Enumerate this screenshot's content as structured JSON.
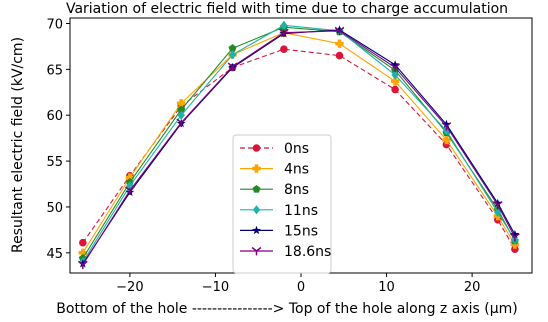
{
  "chart_data": {
    "type": "line",
    "title": "Variation of electric field with time due to charge accumulation",
    "xlabel": "Bottom of the hole ----------------> Top of the hole along z axis (μm)",
    "ylabel": "Resultant electric field (kV/cm)",
    "xlim": [
      -27,
      27
    ],
    "ylim": [
      42.8,
      70.6
    ],
    "xticks": [
      -20,
      -10,
      0,
      10,
      20
    ],
    "yticks": [
      45,
      50,
      55,
      60,
      65,
      70
    ],
    "grid": false,
    "legend_position": "lower-center",
    "x": [
      -25.5,
      -20,
      -14,
      -8,
      -2,
      4.5,
      11,
      17,
      23,
      25
    ],
    "series": [
      {
        "name": "0ns",
        "color": "#dc143c",
        "dash": "dashed",
        "marker": "circle",
        "values": [
          46.1,
          53.4,
          61.0,
          65.2,
          67.2,
          66.5,
          62.8,
          56.8,
          48.6,
          45.4
        ]
      },
      {
        "name": "4ns",
        "color": "#ffa500",
        "dash": "solid",
        "marker": "plus",
        "values": [
          45.0,
          53.2,
          61.3,
          66.6,
          69.0,
          67.8,
          63.7,
          57.3,
          49.0,
          45.9
        ]
      },
      {
        "name": "8ns",
        "color": "#228b22",
        "dash": "solid",
        "marker": "pentagon",
        "values": [
          44.4,
          52.7,
          60.6,
          67.3,
          69.6,
          69.1,
          64.9,
          58.1,
          49.7,
          46.3
        ]
      },
      {
        "name": "11ns",
        "color": "#20b2aa",
        "dash": "solid",
        "marker": "diamond",
        "values": [
          44.0,
          52.3,
          60.0,
          66.6,
          69.8,
          69.2,
          64.4,
          58.3,
          49.4,
          46.4
        ]
      },
      {
        "name": "15ns",
        "color": "#000080",
        "dash": "solid",
        "marker": "star",
        "values": [
          43.8,
          51.6,
          59.1,
          65.2,
          68.9,
          69.3,
          65.5,
          59.0,
          50.4,
          47.0
        ]
      },
      {
        "name": "18.6ns",
        "color": "#800080",
        "dash": "solid",
        "marker": "tri",
        "values": [
          43.7,
          51.8,
          59.2,
          65.3,
          69.0,
          69.2,
          65.2,
          58.8,
          50.2,
          46.7
        ]
      }
    ]
  }
}
